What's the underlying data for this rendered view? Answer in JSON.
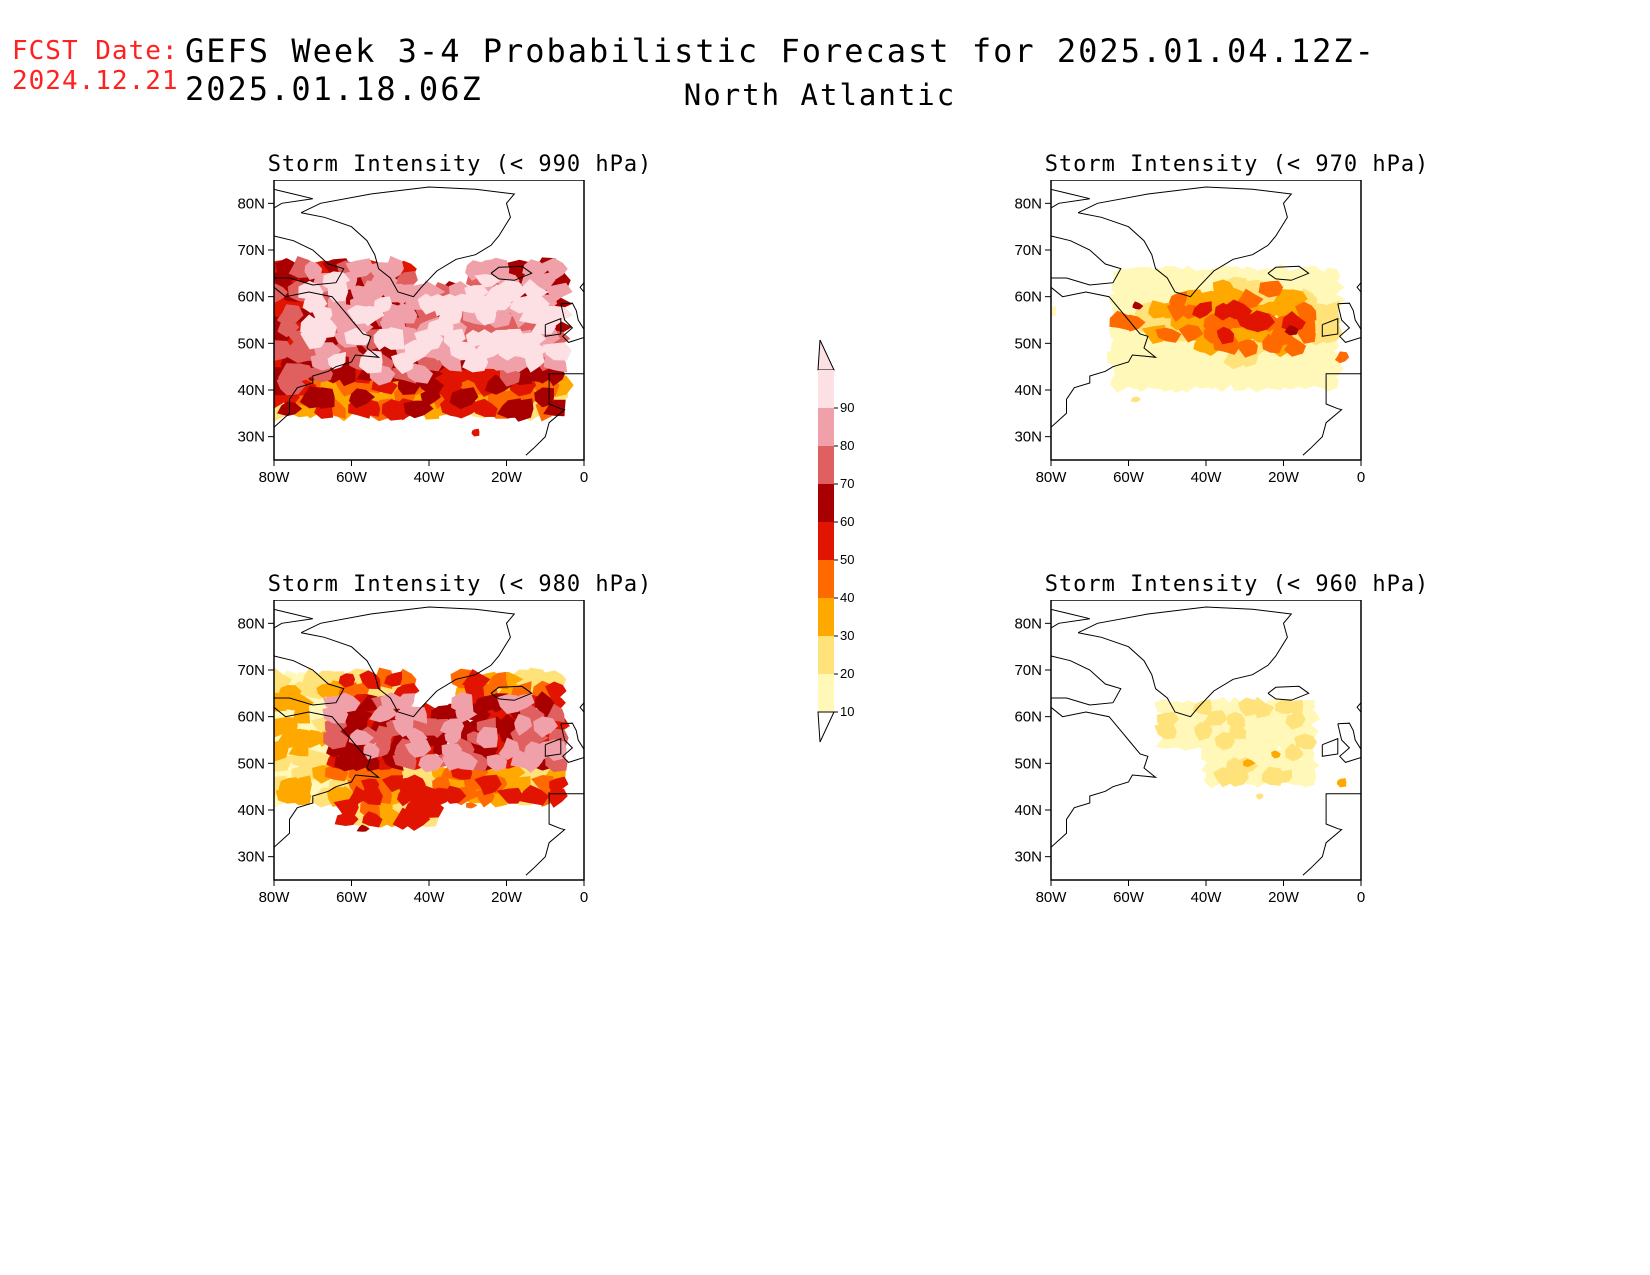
{
  "header": {
    "fcst_label": "FCST Date:",
    "fcst_date": "2024.12.21",
    "title": "GEFS Week 3-4 Probabilistic Forecast for 2025.01.04.12Z-2025.01.18.06Z",
    "region": "North Atlantic"
  },
  "colors": {
    "10": "#fff8b8",
    "20": "#ffe27a",
    "30": "#ffa800",
    "40": "#ff6a00",
    "50": "#e01400",
    "60": "#a80000",
    "70": "#e06060",
    "80": "#f0a0a8",
    "90": "#fde0e4"
  },
  "colorbar": {
    "levels": [
      10,
      20,
      30,
      40,
      50,
      60,
      70,
      80,
      90
    ],
    "labels": [
      "10",
      "20",
      "30",
      "40",
      "50",
      "60",
      "70",
      "80",
      "90"
    ]
  },
  "axes": {
    "x_ticks": [
      "80W",
      "60W",
      "40W",
      "20W",
      "0"
    ],
    "y_ticks": [
      "80N",
      "70N",
      "60N",
      "50N",
      "40N",
      "30N"
    ]
  },
  "panels": [
    {
      "id": "p990",
      "title": "Storm Intensity (< 990 hPa)"
    },
    {
      "id": "p970",
      "title": "Storm Intensity (< 970 hPa)"
    },
    {
      "id": "p980",
      "title": "Storm Intensity (< 980 hPa)"
    },
    {
      "id": "p960",
      "title": "Storm Intensity (< 960 hPa)"
    }
  ]
}
